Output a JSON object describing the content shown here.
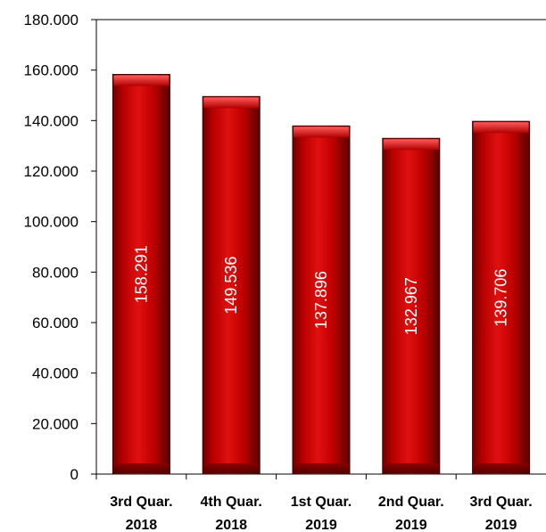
{
  "chart_data": {
    "type": "bar",
    "categories": [
      [
        "3rd Quar.",
        "2018"
      ],
      [
        "4th Quar.",
        "2018"
      ],
      [
        "1st Quar.",
        "2019"
      ],
      [
        "2nd Quar.",
        "2019"
      ],
      [
        "3rd Quar.",
        "2019"
      ]
    ],
    "values": [
      158291,
      149536,
      137896,
      132967,
      139706
    ],
    "data_labels": [
      "158.291",
      "149.536",
      "137.896",
      "132.967",
      "139.706"
    ],
    "yticks": [
      0,
      20000,
      40000,
      60000,
      80000,
      100000,
      120000,
      140000,
      160000,
      180000
    ],
    "ytick_labels": [
      "0",
      "20.000",
      "40.000",
      "60.000",
      "80.000",
      "100.000",
      "120.000",
      "140.000",
      "160.000",
      "180.000"
    ],
    "ylim": [
      0,
      180000
    ],
    "grid": false,
    "legend": "none",
    "bar_color": "#cc0000",
    "title": "",
    "xlabel": "",
    "ylabel": ""
  }
}
